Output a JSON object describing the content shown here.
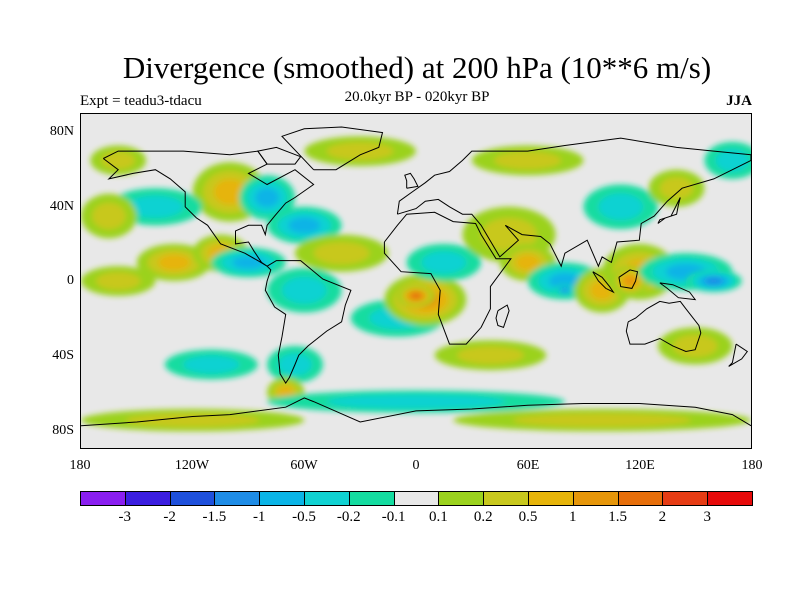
{
  "plot": {
    "title": "Divergence (smoothed) at 200 hPa (10**6 m/s)",
    "experiment": "Expt = teadu3-tdacu",
    "period": "20.0kyr BP - 020kyr BP",
    "season": "JJA"
  },
  "axes": {
    "y_ticks": [
      "80N",
      "40N",
      "0",
      "40S",
      "80S"
    ],
    "x_ticks": [
      "180",
      "120W",
      "60W",
      "0",
      "60E",
      "120E",
      "180"
    ]
  },
  "colorbar": {
    "colors": [
      "#8a1ef0",
      "#3b1ee0",
      "#1e50dc",
      "#1e8ce6",
      "#0ab4e6",
      "#10d2d2",
      "#14dca0",
      "#e8e8e8",
      "#9bd21e",
      "#c8c81e",
      "#e6b40a",
      "#e6960a",
      "#e66e0a",
      "#e63c14",
      "#e60a0a"
    ],
    "labels": [
      "-3",
      "-2",
      "-1.5",
      "-1",
      "-0.5",
      "-0.2",
      "-0.1",
      "0.1",
      "0.2",
      "0.5",
      "1",
      "1.5",
      "2",
      "3"
    ]
  },
  "map_fields": {
    "neutral_color": "#e8e8e8",
    "anomalies": [
      {
        "lon": -95,
        "lat": 50,
        "rx": 10,
        "ry": 10,
        "level": 4
      },
      {
        "lon": -100,
        "lat": 48,
        "rx": 20,
        "ry": 16,
        "level": 3
      },
      {
        "lon": -80,
        "lat": 45,
        "rx": 15,
        "ry": 12,
        "level": -3
      },
      {
        "lon": -60,
        "lat": 30,
        "rx": 20,
        "ry": 10,
        "level": -3
      },
      {
        "lon": -30,
        "lat": 70,
        "rx": 30,
        "ry": 8,
        "level": 2
      },
      {
        "lon": -160,
        "lat": 65,
        "rx": 15,
        "ry": 8,
        "level": 2
      },
      {
        "lon": -140,
        "lat": 40,
        "rx": 25,
        "ry": 10,
        "level": -2
      },
      {
        "lon": -165,
        "lat": 35,
        "rx": 15,
        "ry": 12,
        "level": 2
      },
      {
        "lon": -130,
        "lat": 10,
        "rx": 20,
        "ry": 10,
        "level": 3
      },
      {
        "lon": -105,
        "lat": 15,
        "rx": 15,
        "ry": 10,
        "level": 3
      },
      {
        "lon": -90,
        "lat": 10,
        "rx": 20,
        "ry": 8,
        "level": -3
      },
      {
        "lon": -160,
        "lat": 0,
        "rx": 20,
        "ry": 8,
        "level": 2
      },
      {
        "lon": -40,
        "lat": 15,
        "rx": 25,
        "ry": 10,
        "level": 2
      },
      {
        "lon": -60,
        "lat": -5,
        "rx": 20,
        "ry": 12,
        "level": -2
      },
      {
        "lon": -10,
        "lat": -20,
        "rx": 25,
        "ry": 10,
        "level": -2
      },
      {
        "lon": 5,
        "lat": -10,
        "rx": 22,
        "ry": 14,
        "level": 4
      },
      {
        "lon": 0,
        "lat": -8,
        "rx": 10,
        "ry": 6,
        "level": 5
      },
      {
        "lon": 15,
        "lat": 10,
        "rx": 20,
        "ry": 10,
        "level": -2
      },
      {
        "lon": 50,
        "lat": 25,
        "rx": 25,
        "ry": 15,
        "level": 2
      },
      {
        "lon": 60,
        "lat": 10,
        "rx": 15,
        "ry": 10,
        "level": 3
      },
      {
        "lon": 80,
        "lat": 0,
        "rx": 20,
        "ry": 10,
        "level": -3
      },
      {
        "lon": 80,
        "lat": -5,
        "rx": 6,
        "ry": 3,
        "level": -4
      },
      {
        "lon": 100,
        "lat": -5,
        "rx": 15,
        "ry": 12,
        "level": 3
      },
      {
        "lon": 120,
        "lat": 5,
        "rx": 20,
        "ry": 15,
        "level": 3
      },
      {
        "lon": 115,
        "lat": 0,
        "rx": 10,
        "ry": 8,
        "level": 4
      },
      {
        "lon": 145,
        "lat": 5,
        "rx": 25,
        "ry": 10,
        "level": -3
      },
      {
        "lon": 160,
        "lat": 0,
        "rx": 15,
        "ry": 6,
        "level": -4
      },
      {
        "lon": 110,
        "lat": 40,
        "rx": 20,
        "ry": 12,
        "level": -2
      },
      {
        "lon": 140,
        "lat": 50,
        "rx": 15,
        "ry": 10,
        "level": 2
      },
      {
        "lon": -110,
        "lat": -45,
        "rx": 25,
        "ry": 8,
        "level": -2
      },
      {
        "lon": -65,
        "lat": -45,
        "rx": 15,
        "ry": 10,
        "level": -2
      },
      {
        "lon": -70,
        "lat": -60,
        "rx": 10,
        "ry": 8,
        "level": 3
      },
      {
        "lon": 40,
        "lat": -40,
        "rx": 30,
        "ry": 8,
        "level": 2
      },
      {
        "lon": 150,
        "lat": -35,
        "rx": 20,
        "ry": 10,
        "level": 2
      },
      {
        "lon": 0,
        "lat": -65,
        "rx": 80,
        "ry": 6,
        "level": -2
      },
      {
        "lon": 100,
        "lat": -75,
        "rx": 80,
        "ry": 6,
        "level": 2
      },
      {
        "lon": -120,
        "lat": -75,
        "rx": 60,
        "ry": 6,
        "level": 2
      },
      {
        "lon": 60,
        "lat": 65,
        "rx": 30,
        "ry": 8,
        "level": 2
      },
      {
        "lon": 170,
        "lat": 65,
        "rx": 15,
        "ry": 10,
        "level": -2
      }
    ],
    "coastlines": [
      {
        "name": "north-america",
        "points": [
          [
            -168,
            66
          ],
          [
            -160,
            70
          ],
          [
            -140,
            70
          ],
          [
            -125,
            70
          ],
          [
            -100,
            68
          ],
          [
            -85,
            70
          ],
          [
            -80,
            63
          ],
          [
            -90,
            58
          ],
          [
            -80,
            52
          ],
          [
            -65,
            60
          ],
          [
            -55,
            52
          ],
          [
            -65,
            45
          ],
          [
            -70,
            42
          ],
          [
            -76,
            35
          ],
          [
            -80,
            30
          ],
          [
            -81,
            25
          ],
          [
            -83,
            30
          ],
          [
            -90,
            30
          ],
          [
            -97,
            27
          ],
          [
            -97,
            20
          ],
          [
            -90,
            21
          ],
          [
            -87,
            16
          ],
          [
            -83,
            10
          ],
          [
            -80,
            8
          ],
          [
            -85,
            11
          ],
          [
            -92,
            15
          ],
          [
            -105,
            20
          ],
          [
            -112,
            30
          ],
          [
            -118,
            34
          ],
          [
            -124,
            40
          ],
          [
            -124,
            48
          ],
          [
            -132,
            55
          ],
          [
            -140,
            60
          ],
          [
            -152,
            58
          ],
          [
            -165,
            55
          ],
          [
            -160,
            60
          ],
          [
            -168,
            66
          ]
        ]
      },
      {
        "name": "south-america",
        "points": [
          [
            -80,
            8
          ],
          [
            -75,
            11
          ],
          [
            -62,
            11
          ],
          [
            -50,
            1
          ],
          [
            -35,
            -5
          ],
          [
            -38,
            -13
          ],
          [
            -40,
            -22
          ],
          [
            -48,
            -27
          ],
          [
            -58,
            -35
          ],
          [
            -63,
            -40
          ],
          [
            -65,
            -45
          ],
          [
            -68,
            -52
          ],
          [
            -70,
            -55
          ],
          [
            -73,
            -50
          ],
          [
            -74,
            -40
          ],
          [
            -72,
            -30
          ],
          [
            -70,
            -18
          ],
          [
            -76,
            -14
          ],
          [
            -81,
            -5
          ],
          [
            -80,
            0
          ],
          [
            -78,
            6
          ],
          [
            -80,
            8
          ]
        ]
      },
      {
        "name": "africa",
        "points": [
          [
            -17,
            21
          ],
          [
            -10,
            30
          ],
          [
            -5,
            36
          ],
          [
            10,
            37
          ],
          [
            20,
            32
          ],
          [
            32,
            31
          ],
          [
            35,
            25
          ],
          [
            43,
            12
          ],
          [
            51,
            12
          ],
          [
            40,
            -3
          ],
          [
            40,
            -15
          ],
          [
            35,
            -25
          ],
          [
            27,
            -34
          ],
          [
            18,
            -34
          ],
          [
            12,
            -18
          ],
          [
            13,
            -5
          ],
          [
            8,
            4
          ],
          [
            -8,
            5
          ],
          [
            -17,
            15
          ],
          [
            -17,
            21
          ]
        ]
      },
      {
        "name": "eurasia",
        "points": [
          [
            -10,
            36
          ],
          [
            -9,
            43
          ],
          [
            -2,
            48
          ],
          [
            5,
            53
          ],
          [
            10,
            57
          ],
          [
            18,
            59
          ],
          [
            25,
            65
          ],
          [
            30,
            70
          ],
          [
            60,
            70
          ],
          [
            80,
            73
          ],
          [
            110,
            77
          ],
          [
            140,
            72
          ],
          [
            160,
            70
          ],
          [
            180,
            68
          ],
          [
            180,
            65
          ],
          [
            170,
            60
          ],
          [
            160,
            55
          ],
          [
            143,
            50
          ],
          [
            135,
            43
          ],
          [
            128,
            35
          ],
          [
            121,
            31
          ],
          [
            120,
            22
          ],
          [
            108,
            21
          ],
          [
            105,
            10
          ],
          [
            100,
            13
          ],
          [
            98,
            8
          ],
          [
            92,
            22
          ],
          [
            80,
            15
          ],
          [
            78,
            8
          ],
          [
            72,
            20
          ],
          [
            67,
            24
          ],
          [
            57,
            25
          ],
          [
            48,
            30
          ],
          [
            55,
            22
          ],
          [
            45,
            13
          ],
          [
            35,
            30
          ],
          [
            30,
            36
          ],
          [
            25,
            36
          ],
          [
            18,
            40
          ],
          [
            12,
            44
          ],
          [
            5,
            43
          ],
          [
            0,
            39
          ],
          [
            -10,
            36
          ]
        ]
      },
      {
        "name": "australia",
        "points": [
          [
            114,
            -22
          ],
          [
            113,
            -27
          ],
          [
            115,
            -34
          ],
          [
            123,
            -34
          ],
          [
            131,
            -31
          ],
          [
            138,
            -35
          ],
          [
            145,
            -38
          ],
          [
            150,
            -37
          ],
          [
            153,
            -28
          ],
          [
            152,
            -24
          ],
          [
            145,
            -15
          ],
          [
            142,
            -11
          ],
          [
            136,
            -12
          ],
          [
            131,
            -11
          ],
          [
            124,
            -15
          ],
          [
            118,
            -20
          ],
          [
            114,
            -22
          ]
        ]
      },
      {
        "name": "greenland",
        "points": [
          [
            -55,
            60
          ],
          [
            -43,
            60
          ],
          [
            -30,
            68
          ],
          [
            -20,
            72
          ],
          [
            -18,
            80
          ],
          [
            -40,
            83
          ],
          [
            -60,
            82
          ],
          [
            -72,
            78
          ],
          [
            -55,
            60
          ]
        ]
      },
      {
        "name": "antarctica",
        "points": [
          [
            -180,
            -78
          ],
          [
            -150,
            -76
          ],
          [
            -120,
            -73
          ],
          [
            -100,
            -72
          ],
          [
            -70,
            -68
          ],
          [
            -60,
            -63
          ],
          [
            -55,
            -65
          ],
          [
            -30,
            -76
          ],
          [
            0,
            -70
          ],
          [
            30,
            -69
          ],
          [
            60,
            -67
          ],
          [
            90,
            -66
          ],
          [
            120,
            -66
          ],
          [
            150,
            -68
          ],
          [
            170,
            -72
          ],
          [
            180,
            -78
          ]
        ]
      },
      {
        "name": "borneo",
        "points": [
          [
            109,
            2
          ],
          [
            115,
            6
          ],
          [
            119,
            5
          ],
          [
            118,
            0
          ],
          [
            116,
            -4
          ],
          [
            110,
            -3
          ],
          [
            109,
            2
          ]
        ]
      },
      {
        "name": "sumatra",
        "points": [
          [
            95,
            5
          ],
          [
            100,
            2
          ],
          [
            104,
            -3
          ],
          [
            106,
            -6
          ],
          [
            102,
            -4
          ],
          [
            98,
            0
          ],
          [
            95,
            5
          ]
        ]
      },
      {
        "name": "new-guinea",
        "points": [
          [
            131,
            -1
          ],
          [
            138,
            -2
          ],
          [
            147,
            -6
          ],
          [
            150,
            -10
          ],
          [
            141,
            -9
          ],
          [
            135,
            -4
          ],
          [
            131,
            -1
          ]
        ]
      },
      {
        "name": "madagascar",
        "points": [
          [
            44,
            -16
          ],
          [
            49,
            -13
          ],
          [
            50,
            -16
          ],
          [
            47,
            -25
          ],
          [
            44,
            -24
          ],
          [
            43,
            -20
          ],
          [
            44,
            -16
          ]
        ]
      },
      {
        "name": "japan",
        "points": [
          [
            130,
            31
          ],
          [
            134,
            34
          ],
          [
            140,
            36
          ],
          [
            141,
            41
          ],
          [
            142,
            45
          ],
          [
            140,
            41
          ],
          [
            137,
            35
          ],
          [
            131,
            33
          ],
          [
            130,
            31
          ]
        ]
      },
      {
        "name": "british-isles",
        "points": [
          [
            -5,
            50
          ],
          [
            1,
            51
          ],
          [
            -1,
            55
          ],
          [
            -3,
            58
          ],
          [
            -6,
            57
          ],
          [
            -5,
            54
          ],
          [
            -5,
            50
          ]
        ]
      },
      {
        "name": "baffin-island",
        "points": [
          [
            -80,
            63
          ],
          [
            -65,
            63
          ],
          [
            -62,
            67
          ],
          [
            -75,
            72
          ],
          [
            -85,
            70
          ],
          [
            -80,
            63
          ]
        ]
      },
      {
        "name": "new-zealand",
        "points": [
          [
            172,
            -34
          ],
          [
            178,
            -38
          ],
          [
            175,
            -42
          ],
          [
            168,
            -46
          ],
          [
            170,
            -44
          ],
          [
            172,
            -34
          ]
        ]
      }
    ]
  }
}
